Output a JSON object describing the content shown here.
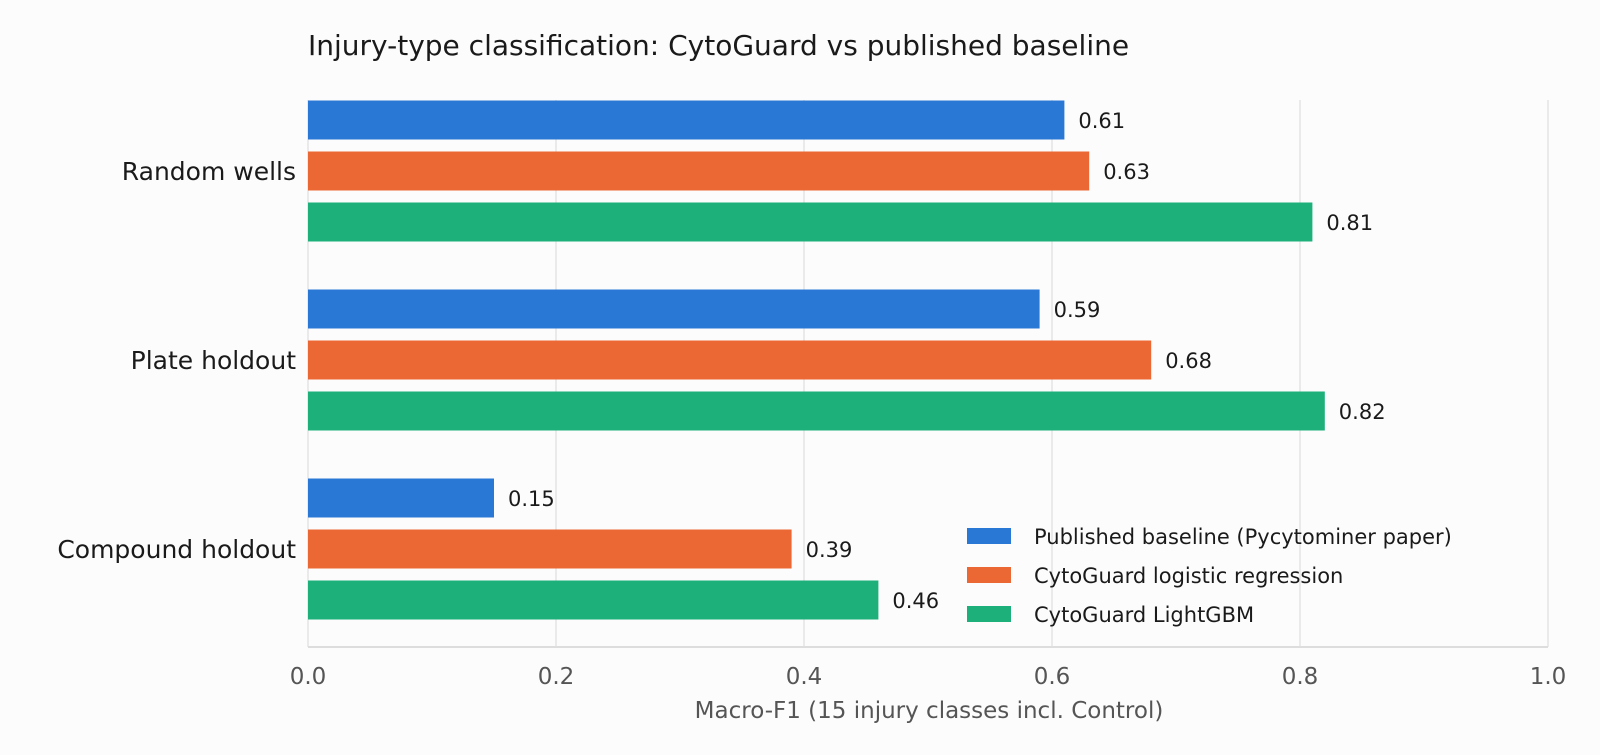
{
  "chart_data": {
    "type": "bar",
    "orientation": "horizontal",
    "title": "Injury-type classification: CytoGuard vs published baseline",
    "xlabel": "Macro-F1 (15 injury classes incl. Control)",
    "ylabel": "",
    "xlim": [
      0,
      1.0
    ],
    "xticks": [
      "0.0",
      "0.2",
      "0.4",
      "0.6",
      "0.8",
      "1.0"
    ],
    "categories": [
      "Random wells",
      "Plate holdout",
      "Compound holdout"
    ],
    "series": [
      {
        "name": "Published baseline (Pycytominer paper)",
        "color": "#2a78d6",
        "values": [
          0.61,
          0.59,
          0.15
        ],
        "labels": [
          "0.61",
          "0.59",
          "0.15"
        ]
      },
      {
        "name": "CytoGuard logistic regression",
        "color": "#eb6834",
        "values": [
          0.63,
          0.68,
          0.39
        ],
        "labels": [
          "0.63",
          "0.68",
          "0.39"
        ]
      },
      {
        "name": "CytoGuard LightGBM",
        "color": "#1db07b",
        "values": [
          0.81,
          0.82,
          0.46
        ],
        "labels": [
          "0.81",
          "0.82",
          "0.46"
        ]
      }
    ],
    "grid": true,
    "legend_position": "lower-right"
  }
}
